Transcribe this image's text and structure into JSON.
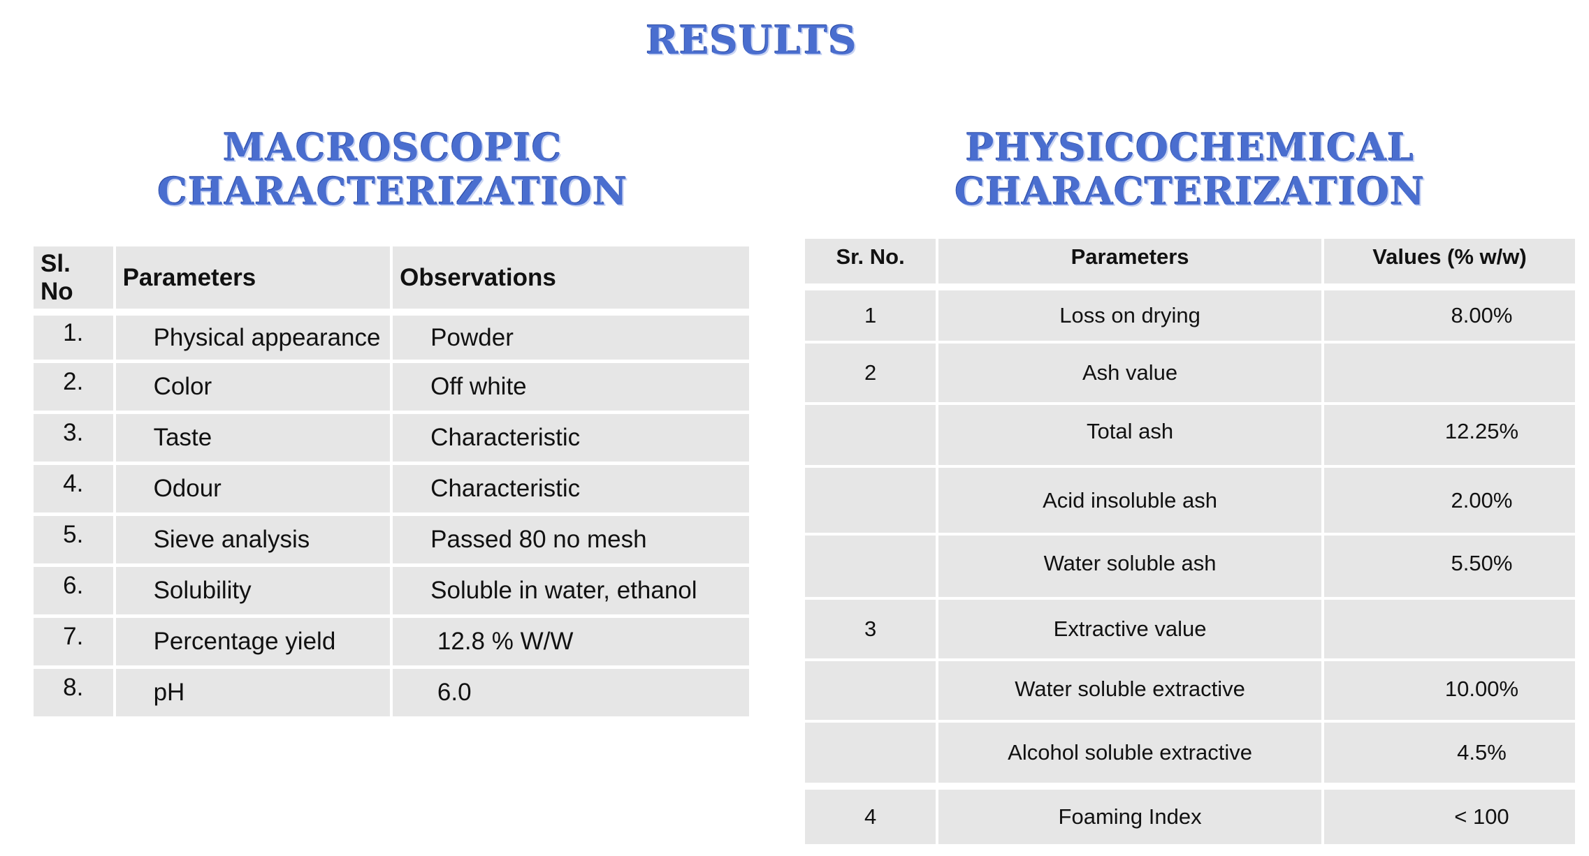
{
  "title": "RESULTS",
  "macroscopic": {
    "title_line1": "MACROSCOPIC",
    "title_line2": "CHARACTERIZATION",
    "headers": [
      "Sl. No",
      "Parameters",
      "Observations"
    ],
    "rows": [
      {
        "no": "1.",
        "parameter": "Physical appearance",
        "observation": "Powder"
      },
      {
        "no": "2.",
        "parameter": "Color",
        "observation": "Off white"
      },
      {
        "no": "3.",
        "parameter": "Taste",
        "observation": "Characteristic"
      },
      {
        "no": "4.",
        "parameter": "Odour",
        "observation": "Characteristic"
      },
      {
        "no": "5.",
        "parameter": "Sieve analysis",
        "observation": "Passed 80 no mesh"
      },
      {
        "no": "6.",
        "parameter": "Solubility",
        "observation": "Soluble in water, ethanol"
      },
      {
        "no": "7.",
        "parameter": "Percentage yield",
        "observation": " 12.8 % W/W"
      },
      {
        "no": "8.",
        "parameter": "pH",
        "observation": " 6.0"
      }
    ]
  },
  "physicochemical": {
    "title_line1": "PHYSICOCHEMICAL",
    "title_line2": "CHARACTERIZATION",
    "headers": [
      "Sr. No.",
      "Parameters",
      "Values (% w/w)"
    ],
    "rows": [
      {
        "no": "1",
        "parameter": "Loss on drying",
        "value": "8.00%"
      },
      {
        "no": "2",
        "parameter": "Ash value",
        "value": ""
      },
      {
        "no": "",
        "parameter": "Total ash",
        "value": "12.25%"
      },
      {
        "no": "",
        "parameter": "Acid insoluble ash",
        "value": "2.00%"
      },
      {
        "no": "",
        "parameter": "Water soluble ash",
        "value": "5.50%"
      },
      {
        "no": "3",
        "parameter": "Extractive value",
        "value": ""
      },
      {
        "no": "",
        "parameter": "Water soluble extractive",
        "value": "10.00%"
      },
      {
        "no": "",
        "parameter": "Alcohol soluble extractive",
        "value": "4.5%"
      },
      {
        "no": "4",
        "parameter": "Foaming Index",
        "value": "< 100"
      }
    ]
  }
}
